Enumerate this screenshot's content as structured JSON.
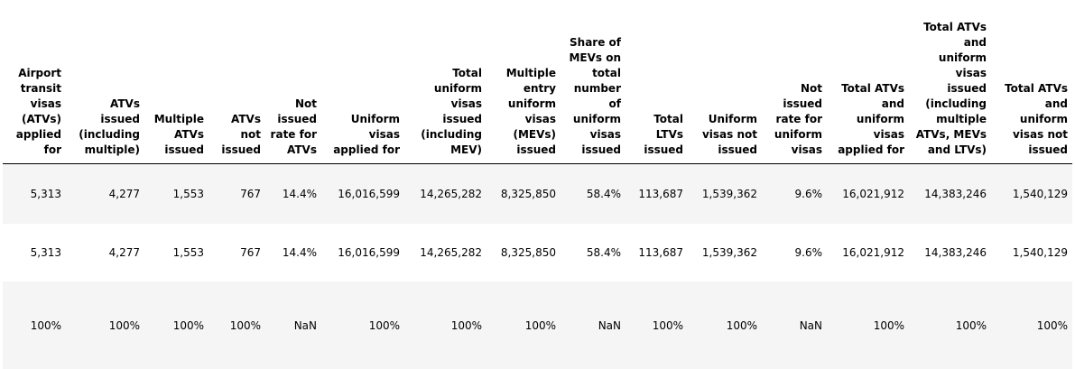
{
  "table": {
    "columns": [
      "Airport transit visas (ATVs) applied for",
      "ATVs issued (including multiple)",
      "Multiple ATVs issued",
      "ATVs not issued",
      "Not issued rate for ATVs",
      "Uniform visas applied for",
      "Total uniform visas issued (including MEV)",
      "Multiple entry uniform visas (MEVs) issued",
      "Share of MEVs on total number of uniform visas issued",
      "Total LTVs issued",
      "Uniform visas not issued",
      "Not issued rate for uniform visas",
      "Total ATVs and uniform visas applied for",
      "Total ATVs and uniform visas issued (including multiple ATVs, MEVs and LTVs)",
      "Total ATVs and uniform visas not issued"
    ],
    "rows": [
      [
        "5,313",
        "4,277",
        "1,553",
        "767",
        "14.4%",
        "16,016,599",
        "14,265,282",
        "8,325,850",
        "58.4%",
        "113,687",
        "1,539,362",
        "9.6%",
        "16,021,912",
        "14,383,246",
        "1,540,129"
      ],
      [
        "5,313",
        "4,277",
        "1,553",
        "767",
        "14.4%",
        "16,016,599",
        "14,265,282",
        "8,325,850",
        "58.4%",
        "113,687",
        "1,539,362",
        "9.6%",
        "16,021,912",
        "14,383,246",
        "1,540,129"
      ],
      [
        "100%",
        "100%",
        "100%",
        "100%",
        "NaN",
        "100%",
        "100%",
        "100%",
        "NaN",
        "100%",
        "100%",
        "NaN",
        "100%",
        "100%",
        "100%"
      ]
    ]
  }
}
